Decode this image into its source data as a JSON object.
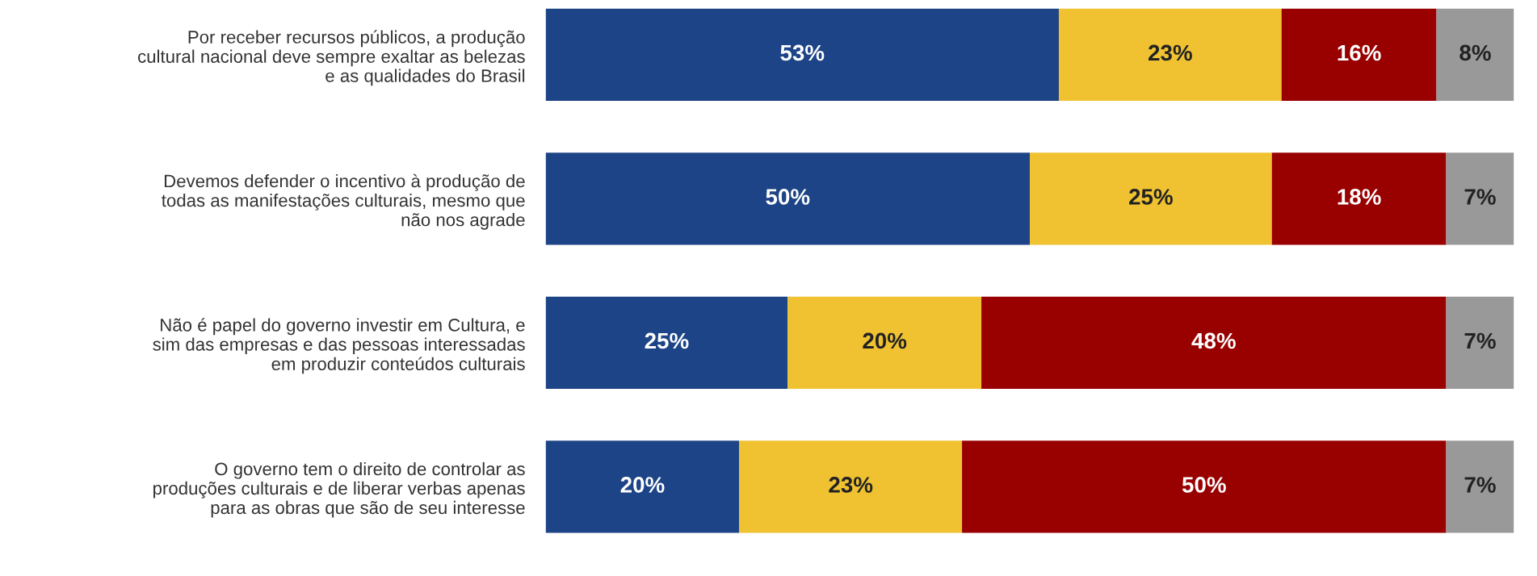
{
  "chart_data": {
    "type": "bar",
    "orientation": "horizontal",
    "stacked": true,
    "grid": false,
    "categories": [
      "Por receber recursos públicos, a produção\ncultural nacional deve sempre exaltar as belezas\ne as qualidades do Brasil",
      "Devemos defender o incentivo à produção de\ntodas as manifestações culturais, mesmo que\nnão nos agrade",
      "Não é papel do governo investir em Cultura, e\nsim das empresas e das pessoas interessadas\nem produzir conteúdos culturais",
      "O governo tem o direito de controlar as\nproduções culturais e de liberar verbas apenas\npara as obras que são de seu interesse"
    ],
    "series": [
      {
        "color": "#1d4486",
        "values": [
          53,
          50,
          25,
          20
        ],
        "value_labels": [
          "53%",
          "50%",
          "25%",
          "20%"
        ]
      },
      {
        "color": "#f0c232",
        "values": [
          23,
          25,
          20,
          23
        ],
        "value_labels": [
          "23%",
          "25%",
          "20%",
          "23%"
        ]
      },
      {
        "color": "#990000",
        "values": [
          16,
          18,
          48,
          50
        ],
        "value_labels": [
          "16%",
          "18%",
          "48%",
          "50%"
        ]
      },
      {
        "color": "#999999",
        "values": [
          8,
          7,
          7,
          7
        ],
        "value_labels": [
          "8%",
          "7%",
          "7%",
          "7%"
        ]
      }
    ]
  }
}
